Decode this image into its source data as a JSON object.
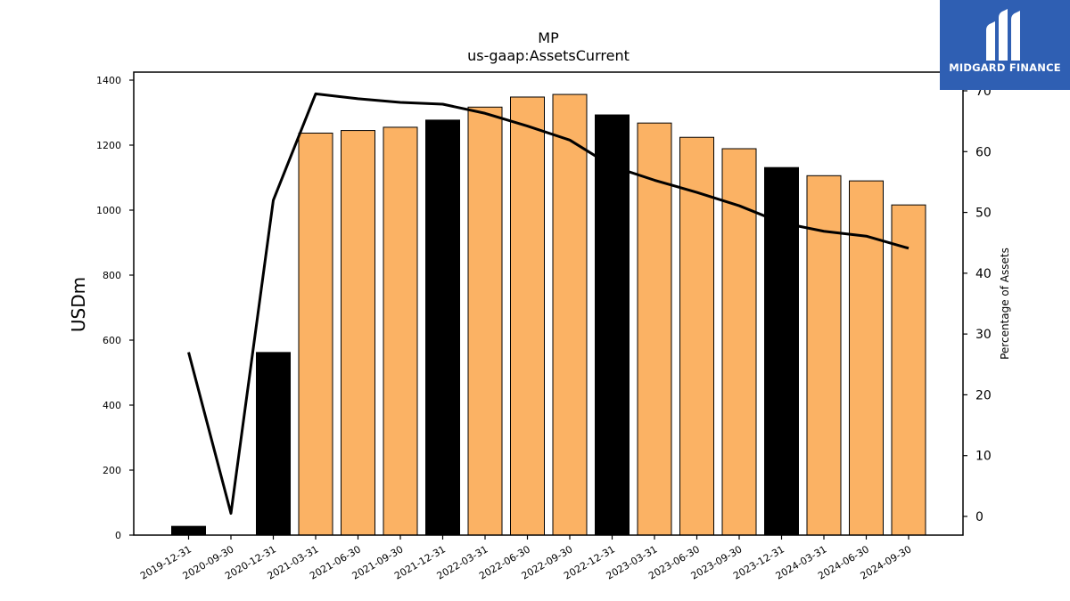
{
  "chart_data": {
    "type": "bar",
    "title": "MP",
    "subtitle": "us-gaap:AssetsCurrent",
    "ylabel": "USDm",
    "y2label": "Percentage of Assets",
    "ylim": [
      0,
      1400
    ],
    "y2lim": [
      -3,
      73
    ],
    "yticks": [
      0,
      200,
      400,
      600,
      800,
      1000,
      1200,
      1400
    ],
    "y2ticks": [
      0,
      10,
      20,
      30,
      40,
      50,
      60,
      70
    ],
    "categories": [
      "2019-12-31",
      "2020-09-30",
      "2020-12-31",
      "2021-03-31",
      "2021-06-30",
      "2021-09-30",
      "2021-12-31",
      "2022-03-31",
      "2022-06-30",
      "2022-09-30",
      "2022-12-31",
      "2023-03-31",
      "2023-06-30",
      "2023-09-30",
      "2023-12-31",
      "2024-03-31",
      "2024-06-30",
      "2024-09-30"
    ],
    "values": [
      27,
      0,
      562,
      1237,
      1245,
      1255,
      1277,
      1317,
      1348,
      1356,
      1293,
      1268,
      1224,
      1189,
      1131,
      1106,
      1090,
      1016
    ],
    "bar_highlight": [
      true,
      true,
      true,
      false,
      false,
      false,
      true,
      false,
      false,
      false,
      true,
      false,
      false,
      false,
      true,
      false,
      false,
      false
    ],
    "series": [
      {
        "name": "",
        "axis": "right",
        "type": "line",
        "values": [
          27,
          0.5,
          52,
          69.5,
          68.7,
          68.1,
          67.8,
          66.3,
          64.2,
          61.9,
          57.6,
          55.3,
          53.3,
          51.1,
          48.3,
          46.9,
          46.1,
          44.1
        ]
      }
    ],
    "colors": {
      "bar": "#fbb264",
      "highlight_bar": "#000000",
      "line": "#000000"
    },
    "grid": false
  },
  "logo": {
    "text": "MIDGARD FINANCE"
  }
}
